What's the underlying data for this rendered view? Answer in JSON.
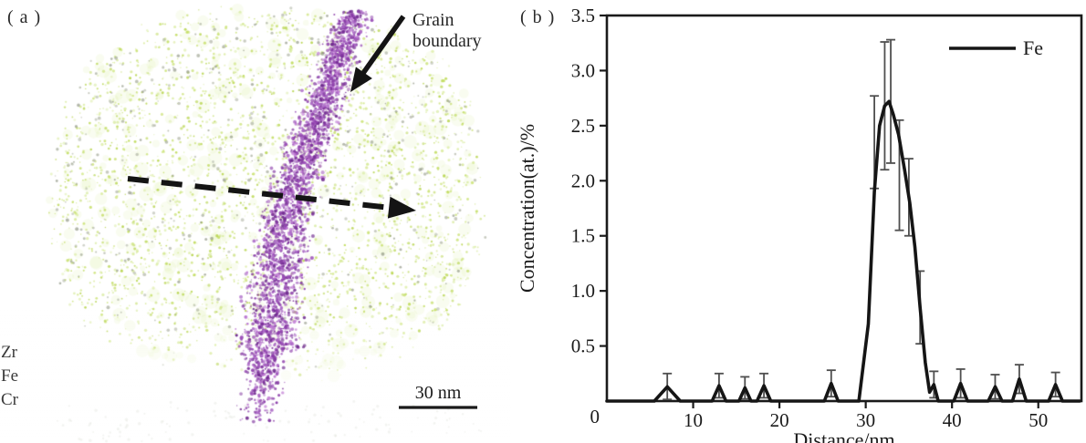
{
  "figure": {
    "panel_a": {
      "label": "( a )",
      "grain_boundary_annotation": "Grain boundary",
      "elements": [
        "Zr",
        "Fe",
        "Cr"
      ],
      "scale_bar_label": "30 nm",
      "colors": {
        "matrix_green": "#c9e170",
        "grain_boundary_purple": "#9b4fb8",
        "speckle_gray": "#9aa18c",
        "annotation_black": "#1a1a1a"
      }
    },
    "panel_b": {
      "label": "( b )"
    }
  },
  "chart_data": {
    "type": "line",
    "title": "",
    "xlabel": "Distance/nm",
    "ylabel": "Concentration(at.)/%",
    "xlim": [
      0,
      55
    ],
    "ylim": [
      0,
      3.5
    ],
    "grid": false,
    "origin_tick_label": "0",
    "x_ticks": [
      {
        "v": 10,
        "label": "10"
      },
      {
        "v": 20,
        "label": "20"
      },
      {
        "v": 30,
        "label": "30"
      },
      {
        "v": 40,
        "label": "40"
      },
      {
        "v": 50,
        "label": "50"
      }
    ],
    "y_ticks": [
      {
        "v": 0.5,
        "label": "0.5"
      },
      {
        "v": 1.0,
        "label": "1.0"
      },
      {
        "v": 1.5,
        "label": "1.5"
      },
      {
        "v": 2.0,
        "label": "2.0"
      },
      {
        "v": 2.5,
        "label": "2.5"
      },
      {
        "v": 3.0,
        "label": "3.0"
      },
      {
        "v": 3.5,
        "label": "3.5"
      }
    ],
    "legend": {
      "position": "top-right",
      "entries": [
        {
          "label": "Fe",
          "color": "#151515"
        }
      ]
    },
    "series": [
      {
        "name": "Fe",
        "color": "#151515",
        "error_bar_color": "#4f4f4f",
        "points": [
          [
            0,
            0
          ],
          [
            5.5,
            0
          ],
          [
            7,
            0.13
          ],
          [
            8.5,
            0
          ],
          [
            12.2,
            0
          ],
          [
            13,
            0.14
          ],
          [
            13.8,
            0
          ],
          [
            15.3,
            0
          ],
          [
            16,
            0.12
          ],
          [
            16.7,
            0
          ],
          [
            17.4,
            0
          ],
          [
            18.2,
            0.14
          ],
          [
            19,
            0
          ],
          [
            25.2,
            0
          ],
          [
            26,
            0.16
          ],
          [
            26.8,
            0
          ],
          [
            29.2,
            0
          ],
          [
            30.3,
            0.7
          ],
          [
            31,
            1.9
          ],
          [
            31.6,
            2.5
          ],
          [
            32.2,
            2.68
          ],
          [
            32.7,
            2.72
          ],
          [
            33.2,
            2.6
          ],
          [
            33.8,
            2.42
          ],
          [
            34.5,
            2.1
          ],
          [
            35.1,
            1.8
          ],
          [
            35.7,
            1.4
          ],
          [
            36.3,
            0.85
          ],
          [
            36.9,
            0.35
          ],
          [
            37.4,
            0.08
          ],
          [
            37.9,
            0.15
          ],
          [
            38.4,
            0
          ],
          [
            40.2,
            0
          ],
          [
            41,
            0.16
          ],
          [
            41.8,
            0
          ],
          [
            44.2,
            0
          ],
          [
            45,
            0.13
          ],
          [
            45.8,
            0
          ],
          [
            47,
            0
          ],
          [
            47.8,
            0.2
          ],
          [
            48.6,
            0
          ],
          [
            51.2,
            0
          ],
          [
            52,
            0.15
          ],
          [
            52.8,
            0
          ],
          [
            54.8,
            0
          ]
        ],
        "error_bars": [
          [
            7,
            0.13,
            0.12
          ],
          [
            13,
            0.14,
            0.11
          ],
          [
            16,
            0.12,
            0.1
          ],
          [
            18.2,
            0.14,
            0.11
          ],
          [
            26,
            0.16,
            0.12
          ],
          [
            31,
            2.35,
            0.42
          ],
          [
            32.2,
            2.68,
            0.58
          ],
          [
            32.9,
            2.72,
            0.56
          ],
          [
            33.9,
            2.05,
            0.5
          ],
          [
            35,
            1.85,
            0.35
          ],
          [
            36.3,
            0.85,
            0.33
          ],
          [
            37.9,
            0.15,
            0.12
          ],
          [
            41,
            0.16,
            0.13
          ],
          [
            45,
            0.13,
            0.11
          ],
          [
            47.8,
            0.2,
            0.13
          ],
          [
            52,
            0.15,
            0.11
          ]
        ]
      }
    ]
  }
}
